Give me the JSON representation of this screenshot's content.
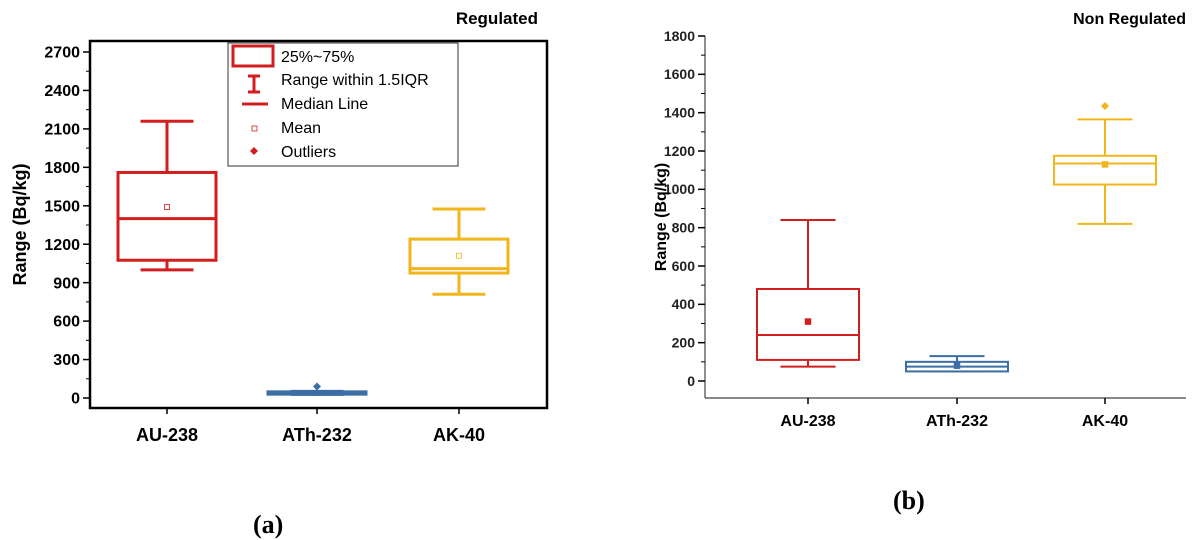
{
  "colors": {
    "red": "#d21e1e",
    "blue": "#3b6ea5",
    "yellow": "#f2b61c",
    "axis": "#000000"
  },
  "chart_data": [
    {
      "type": "box",
      "title": "Regulated",
      "ylabel": "Range (Bq/kg)",
      "xlabel": "",
      "ylim": [
        -100,
        2850
      ],
      "yticks": [
        0,
        300,
        600,
        900,
        1200,
        1500,
        1800,
        2100,
        2400,
        2700
      ],
      "categories": [
        "AU-238",
        "ATh-232",
        "AK-40"
      ],
      "boxes": [
        {
          "category": "AU-238",
          "color": "red",
          "q1": 1075,
          "median": 1400,
          "q3": 1760,
          "whisker_low": 1000,
          "whisker_high": 2160,
          "mean": 1490,
          "outliers": []
        },
        {
          "category": "ATh-232",
          "color": "blue",
          "q1": 30,
          "median": 38,
          "q3": 48,
          "whisker_low": 28,
          "whisker_high": 52,
          "mean": 40,
          "outliers": [
            90
          ]
        },
        {
          "category": "AK-40",
          "color": "yellow",
          "q1": 975,
          "median": 1010,
          "q3": 1240,
          "whisker_low": 810,
          "whisker_high": 1475,
          "mean": 1110,
          "outliers": []
        }
      ],
      "legend": {
        "placement": "top-center",
        "items": [
          "25%~75%",
          "Range within 1.5IQR",
          "Median Line",
          "Mean",
          "Outliers"
        ]
      },
      "panel_label": "(a)"
    },
    {
      "type": "box",
      "title": "Non Regulated",
      "ylabel": "Range (Bq/kg)",
      "xlabel": "",
      "ylim": [
        -100,
        1800
      ],
      "yticks": [
        0,
        200,
        400,
        600,
        800,
        1000,
        1200,
        1400,
        1600,
        1800
      ],
      "categories": [
        "AU-238",
        "ATh-232",
        "AK-40"
      ],
      "boxes": [
        {
          "category": "AU-238",
          "color": "red",
          "q1": 110,
          "median": 240,
          "q3": 480,
          "whisker_low": 75,
          "whisker_high": 840,
          "mean": 310,
          "outliers": []
        },
        {
          "category": "ATh-232",
          "color": "blue",
          "q1": 50,
          "median": 75,
          "q3": 100,
          "whisker_low": 50,
          "whisker_high": 130,
          "mean": 80,
          "outliers": []
        },
        {
          "category": "AK-40",
          "color": "yellow",
          "q1": 1025,
          "median": 1135,
          "q3": 1175,
          "whisker_low": 820,
          "whisker_high": 1365,
          "mean": 1130,
          "outliers": [
            1435
          ]
        }
      ],
      "panel_label": "(b)"
    }
  ]
}
